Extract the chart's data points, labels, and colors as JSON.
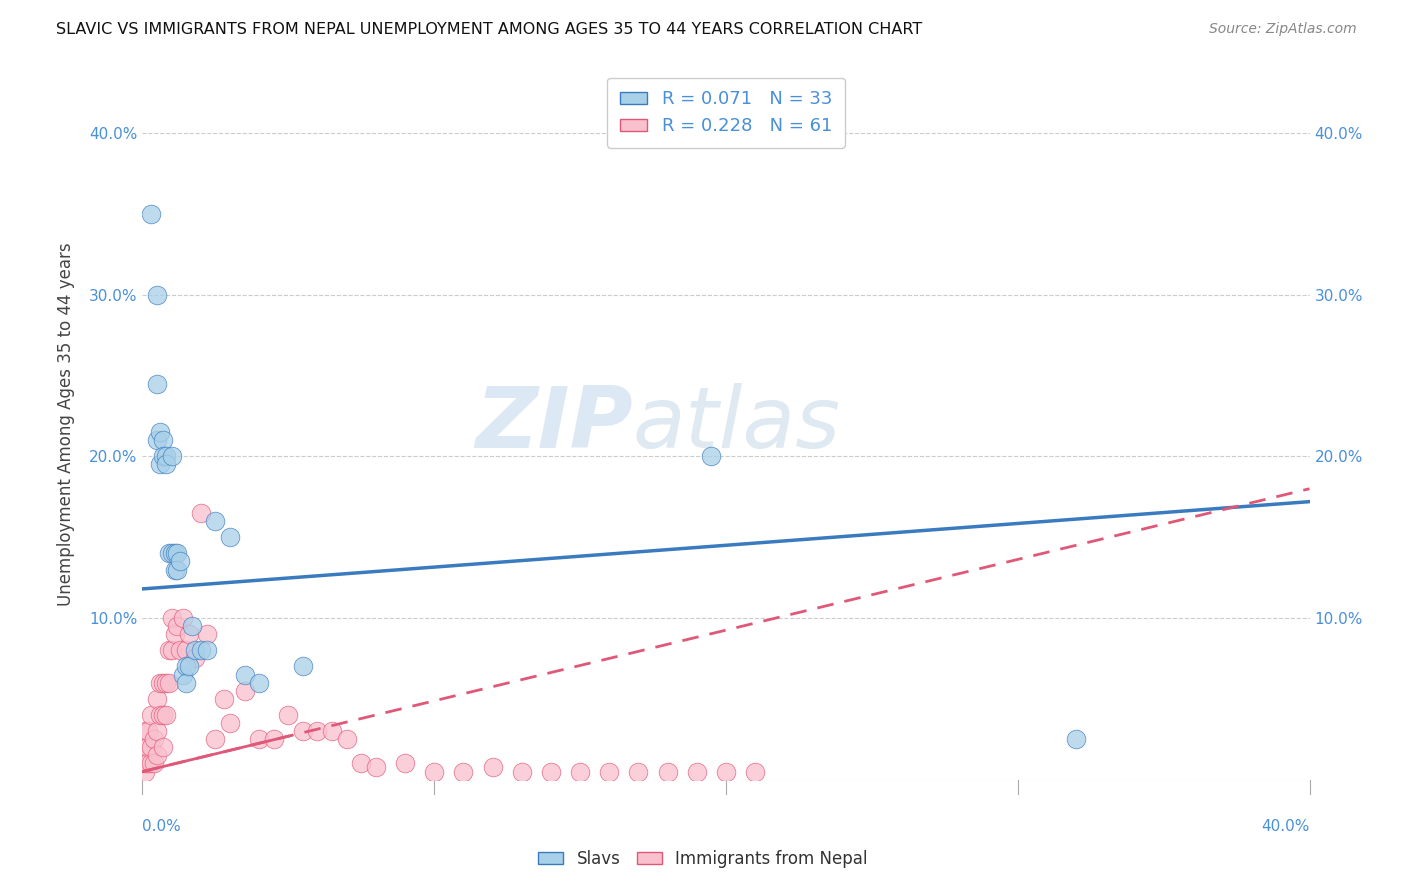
{
  "title": "SLAVIC VS IMMIGRANTS FROM NEPAL UNEMPLOYMENT AMONG AGES 35 TO 44 YEARS CORRELATION CHART",
  "source": "Source: ZipAtlas.com",
  "ylabel": "Unemployment Among Ages 35 to 44 years",
  "xlim": [
    0.0,
    0.4
  ],
  "ylim": [
    0.0,
    0.44
  ],
  "xticks": [
    0.0,
    0.1,
    0.2,
    0.3,
    0.4
  ],
  "yticks": [
    0.0,
    0.1,
    0.2,
    0.3,
    0.4
  ],
  "xticklabels": [
    "0.0%",
    "",
    "",
    "",
    "40.0%"
  ],
  "slavs_R": 0.071,
  "slavs_N": 33,
  "nepal_R": 0.228,
  "nepal_N": 61,
  "slavs_color": "#a8d0e8",
  "nepal_color": "#f9c0ce",
  "slavs_line_color": "#3a7bbf",
  "nepal_line_color": "#e05878",
  "tick_color": "#4a90d9",
  "legend_label_slavs": "Slavs",
  "legend_label_nepal": "Immigrants from Nepal",
  "watermark_zip": "ZIP",
  "watermark_atlas": "atlas",
  "slavs_x": [
    0.003,
    0.005,
    0.005,
    0.005,
    0.006,
    0.006,
    0.007,
    0.007,
    0.008,
    0.008,
    0.009,
    0.01,
    0.01,
    0.011,
    0.011,
    0.012,
    0.012,
    0.013,
    0.014,
    0.015,
    0.015,
    0.016,
    0.017,
    0.018,
    0.02,
    0.022,
    0.025,
    0.03,
    0.035,
    0.04,
    0.055,
    0.195,
    0.32
  ],
  "slavs_y": [
    0.35,
    0.3,
    0.245,
    0.21,
    0.215,
    0.195,
    0.21,
    0.2,
    0.2,
    0.195,
    0.14,
    0.14,
    0.2,
    0.14,
    0.13,
    0.14,
    0.13,
    0.135,
    0.065,
    0.07,
    0.06,
    0.07,
    0.095,
    0.08,
    0.08,
    0.08,
    0.16,
    0.15,
    0.065,
    0.06,
    0.07,
    0.2,
    0.025
  ],
  "nepal_x": [
    0.001,
    0.001,
    0.001,
    0.001,
    0.002,
    0.002,
    0.002,
    0.003,
    0.003,
    0.003,
    0.004,
    0.004,
    0.005,
    0.005,
    0.005,
    0.006,
    0.006,
    0.007,
    0.007,
    0.007,
    0.008,
    0.008,
    0.009,
    0.009,
    0.01,
    0.01,
    0.011,
    0.012,
    0.013,
    0.014,
    0.015,
    0.016,
    0.018,
    0.02,
    0.022,
    0.025,
    0.028,
    0.03,
    0.035,
    0.04,
    0.045,
    0.05,
    0.055,
    0.06,
    0.065,
    0.07,
    0.075,
    0.08,
    0.09,
    0.1,
    0.11,
    0.12,
    0.13,
    0.14,
    0.15,
    0.16,
    0.17,
    0.18,
    0.19,
    0.2,
    0.21
  ],
  "nepal_y": [
    0.005,
    0.01,
    0.015,
    0.03,
    0.01,
    0.02,
    0.03,
    0.01,
    0.02,
    0.04,
    0.01,
    0.025,
    0.015,
    0.03,
    0.05,
    0.04,
    0.06,
    0.02,
    0.04,
    0.06,
    0.04,
    0.06,
    0.06,
    0.08,
    0.08,
    0.1,
    0.09,
    0.095,
    0.08,
    0.1,
    0.08,
    0.09,
    0.075,
    0.165,
    0.09,
    0.025,
    0.05,
    0.035,
    0.055,
    0.025,
    0.025,
    0.04,
    0.03,
    0.03,
    0.03,
    0.025,
    0.01,
    0.008,
    0.01,
    0.005,
    0.005,
    0.008,
    0.005,
    0.005,
    0.005,
    0.005,
    0.005,
    0.005,
    0.005,
    0.005,
    0.005
  ]
}
